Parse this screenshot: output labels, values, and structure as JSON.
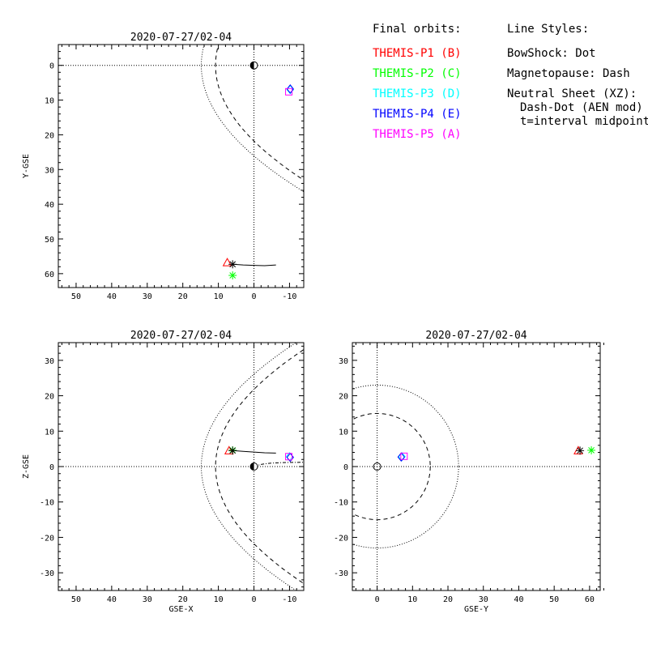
{
  "legend": {
    "orbits_title": "Final orbits:",
    "orbits": [
      {
        "label": "THEMIS-P1 (B)",
        "color": "#ff0000"
      },
      {
        "label": "THEMIS-P2 (C)",
        "color": "#00ff00"
      },
      {
        "label": "THEMIS-P3 (D)",
        "color": "#00ffff"
      },
      {
        "label": "THEMIS-P4 (E)",
        "color": "#0000ff"
      },
      {
        "label": "THEMIS-P5 (A)",
        "color": "#ff00ff"
      }
    ],
    "styles_title": "Line Styles:",
    "styles": [
      "BowShock: Dot",
      "Magnetopause: Dash",
      "Neutral Sheet (XZ):",
      "Dash-Dot (AEN mod)",
      "t=interval midpoint"
    ]
  },
  "chart_data": [
    {
      "type": "scatter",
      "title": "2020-07-27/02-04",
      "xlabel": "",
      "ylabel": "Y-GSE",
      "xlim": [
        55,
        -14
      ],
      "ylim": [
        -6,
        64
      ],
      "y_inverted": true,
      "xticks": [
        50,
        40,
        30,
        20,
        10,
        0,
        -10
      ],
      "yticks": [
        0,
        10,
        20,
        30,
        40,
        50,
        60
      ],
      "earth": [
        0,
        0
      ],
      "markers": [
        {
          "probe": "THEMIS-P1",
          "symbol": "triangle",
          "color": "#ff0000",
          "x": 7.5,
          "y": 56.8
        },
        {
          "probe": "THEMIS-P2",
          "symbol": "asterisk",
          "color": "#00ff00",
          "x": 6.0,
          "y": 60.5
        },
        {
          "probe": "THEMIS-P3",
          "symbol": "diamond",
          "color": "#00ffff",
          "x": -10.2,
          "y": 7.0
        },
        {
          "probe": "THEMIS-P4",
          "symbol": "diamond",
          "color": "#0000ff",
          "x": -10.2,
          "y": 6.8
        },
        {
          "probe": "THEMIS-P5",
          "symbol": "square",
          "color": "#ff00ff",
          "x": -9.8,
          "y": 7.6
        },
        {
          "probe": "midpoint",
          "symbol": "asterisk",
          "color": "#000000",
          "x": 6.0,
          "y": 57.3
        }
      ],
      "orbit_track": [
        [
          6.0,
          57.3
        ],
        [
          3.0,
          57.5
        ],
        [
          0,
          57.6
        ],
        [
          -3,
          57.7
        ],
        [
          -6.2,
          57.5
        ]
      ]
    },
    {
      "type": "scatter",
      "title": "2020-07-27/02-04",
      "xlabel": "GSE-X",
      "ylabel": "Z-GSE",
      "xlim": [
        55,
        -14
      ],
      "ylim": [
        -35,
        35
      ],
      "xticks": [
        50,
        40,
        30,
        20,
        10,
        0,
        -10
      ],
      "yticks": [
        -30,
        -20,
        -10,
        0,
        10,
        20,
        30
      ],
      "earth": [
        0,
        0
      ],
      "markers": [
        {
          "probe": "THEMIS-P1",
          "symbol": "triangle",
          "color": "#ff0000",
          "x": 7.0,
          "y": 4.5
        },
        {
          "probe": "THEMIS-P2",
          "symbol": "asterisk",
          "color": "#00ff00",
          "x": 6.0,
          "y": 4.6
        },
        {
          "probe": "THEMIS-P3",
          "symbol": "diamond",
          "color": "#00ffff",
          "x": -10.0,
          "y": 2.8
        },
        {
          "probe": "THEMIS-P4",
          "symbol": "diamond",
          "color": "#0000ff",
          "x": -10.2,
          "y": 2.6
        },
        {
          "probe": "THEMIS-P5",
          "symbol": "square",
          "color": "#ff00ff",
          "x": -9.8,
          "y": 2.8
        },
        {
          "probe": "midpoint",
          "symbol": "asterisk",
          "color": "#000000",
          "x": 6.0,
          "y": 4.5
        }
      ],
      "orbit_track": [
        [
          6.0,
          4.5
        ],
        [
          3.0,
          4.3
        ],
        [
          0,
          4.1
        ],
        [
          -3,
          3.9
        ],
        [
          -6.2,
          3.8
        ]
      ]
    },
    {
      "type": "scatter",
      "title": "2020-07-27/02-04",
      "xlabel": "GSE-Y",
      "ylabel": "",
      "xlim": [
        -7,
        63
      ],
      "ylim": [
        -35,
        35
      ],
      "xticks": [
        0,
        10,
        20,
        30,
        40,
        50,
        60
      ],
      "yticks": [
        -30,
        -20,
        -10,
        0,
        10,
        20,
        30
      ],
      "earth": [
        0,
        0
      ],
      "bowshock_radius": 23,
      "magnetopause_radius": 15,
      "markers": [
        {
          "probe": "THEMIS-P3",
          "symbol": "diamond",
          "color": "#00ffff",
          "x": 7.0,
          "y": 2.8
        },
        {
          "probe": "THEMIS-P4",
          "symbol": "diamond",
          "color": "#0000ff",
          "x": 6.8,
          "y": 2.7
        },
        {
          "probe": "THEMIS-P5",
          "symbol": "square",
          "color": "#ff00ff",
          "x": 7.6,
          "y": 2.9
        },
        {
          "probe": "THEMIS-P1",
          "symbol": "triangle",
          "color": "#ff0000",
          "x": 56.8,
          "y": 4.5
        },
        {
          "probe": "midpoint",
          "symbol": "asterisk",
          "color": "#000000",
          "x": 57.3,
          "y": 4.5
        },
        {
          "probe": "THEMIS-P2",
          "symbol": "asterisk",
          "color": "#00ff00",
          "x": 60.5,
          "y": 4.6
        }
      ]
    }
  ]
}
